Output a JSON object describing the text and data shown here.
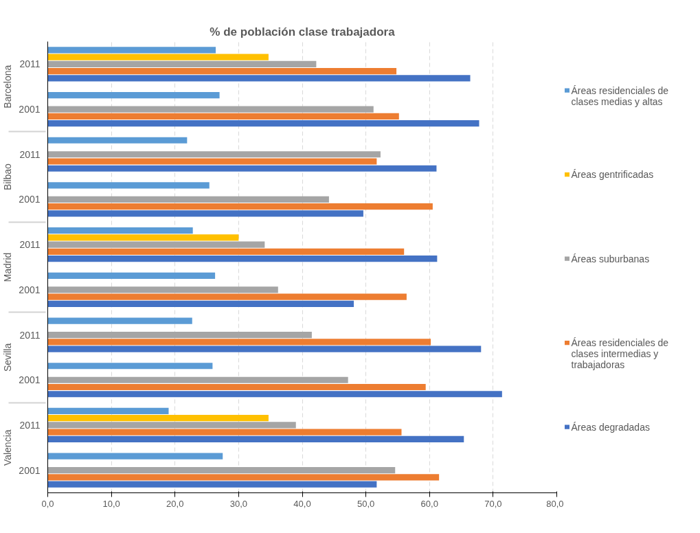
{
  "chart_data": {
    "type": "bar",
    "orientation": "horizontal",
    "title": "% de población clase trabajadora",
    "categories": [
      "2011",
      "2001",
      "2011",
      "2001",
      "2011",
      "2001",
      "2011",
      "2001",
      "2011",
      "2001"
    ],
    "annotations": [
      "Barcelona",
      "Bilbao",
      "Madrid",
      "Sevilla",
      "Valencia"
    ],
    "series": [
      {
        "name": "Áreas residenciales de clases medias y altas",
        "color": "#5b9bd5",
        "values": [
          26.4,
          27.0,
          21.9,
          25.4,
          22.8,
          26.3,
          22.7,
          25.9,
          19.0,
          27.5
        ]
      },
      {
        "name": "Áreas gentrificadas",
        "color": "#ffc000",
        "values": [
          34.7,
          null,
          null,
          null,
          30.0,
          null,
          null,
          null,
          34.7,
          null
        ]
      },
      {
        "name": "Áreas suburbanas",
        "color": "#a5a5a5",
        "values": [
          42.2,
          51.2,
          52.3,
          44.2,
          34.1,
          36.2,
          41.5,
          47.2,
          39.0,
          54.6
        ]
      },
      {
        "name": "Áreas residenciales de clases intermedias y trabajadoras",
        "color": "#ed7d31",
        "values": [
          54.8,
          55.2,
          51.7,
          60.5,
          56.0,
          56.4,
          60.2,
          59.4,
          55.6,
          61.5
        ]
      },
      {
        "name": "Áreas degradadas",
        "color": "#4472c4",
        "values": [
          66.4,
          67.8,
          61.1,
          49.6,
          61.2,
          48.1,
          68.1,
          71.4,
          65.4,
          51.7
        ]
      }
    ],
    "xlim": [
      0,
      80
    ],
    "xticks": [
      {
        "value": 0,
        "label": "0,0"
      },
      {
        "value": 10,
        "label": "10,0"
      },
      {
        "value": 20,
        "label": "20,0"
      },
      {
        "value": 30,
        "label": "30,0"
      },
      {
        "value": 40,
        "label": "40,0"
      },
      {
        "value": 50,
        "label": "50,0"
      },
      {
        "value": 60,
        "label": "60,0"
      },
      {
        "value": 70,
        "label": "70,0"
      },
      {
        "value": 80,
        "label": "80,0"
      }
    ],
    "grid": "x",
    "legend": "right"
  }
}
